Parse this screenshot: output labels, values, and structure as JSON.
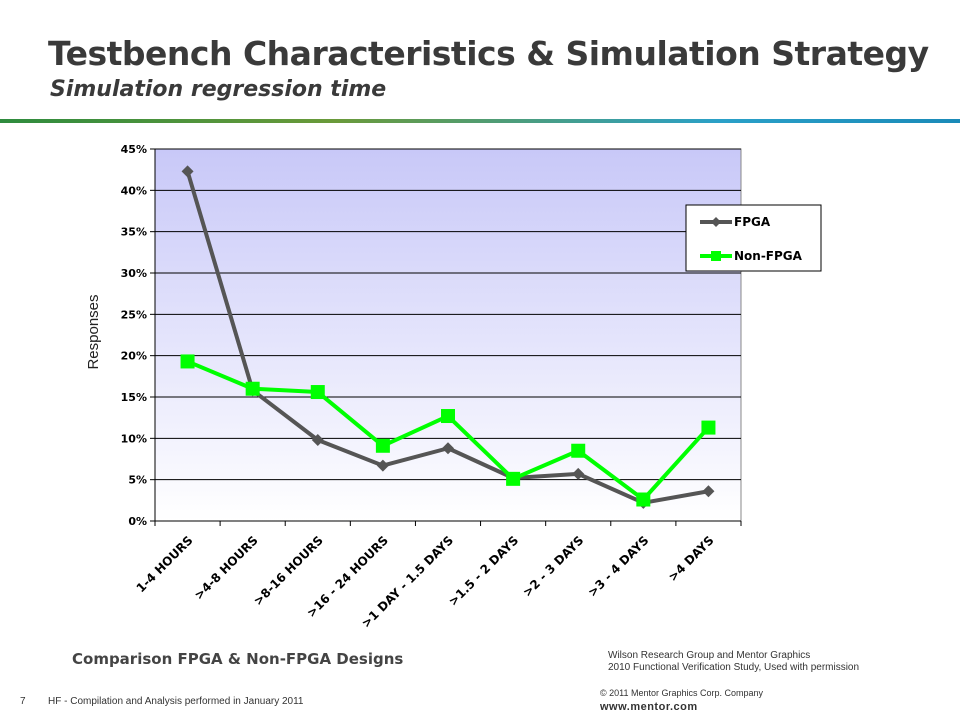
{
  "slide": {
    "title": "Testbench Characteristics & Simulation Strategy",
    "subtitle": "Simulation regression time",
    "caption": "Comparison FPGA & Non-FPGA Designs",
    "source_line1": "Wilson Research Group and Mentor Graphics",
    "source_line2": "2010 Functional Verification Study,  Used with permission",
    "slide_number": "7",
    "footnote": "HF - Compilation and Analysis performed in January 2011",
    "copyright": "© 2011 Mentor Graphics Corp. Company",
    "website": "www.mentor.com"
  },
  "colors": {
    "fpga": "#555555",
    "non_fpga": "#00ff00",
    "plot_top": "#c8c8f8",
    "plot_bottom": "#ffffff",
    "rule_start": "#2e8b3e",
    "rule_end": "#1a8ab8"
  },
  "chart_data": {
    "type": "line",
    "title": "",
    "xlabel": "",
    "ylabel": "Responses",
    "ylim": [
      0,
      45
    ],
    "yticks": [
      0,
      5,
      10,
      15,
      20,
      25,
      30,
      35,
      40,
      45
    ],
    "ytick_labels": [
      "0%",
      "5%",
      "10%",
      "15%",
      "20%",
      "25%",
      "30%",
      "35%",
      "40%",
      "45%"
    ],
    "categories": [
      "1-4 HOURS",
      ">4-8 HOURS",
      ">8-16 HOURS",
      ">16 - 24 HOURS",
      ">1 DAY - 1.5 DAYS",
      ">1.5 - 2 DAYS",
      ">2 - 3 DAYS",
      ">3 - 4 DAYS",
      ">4 DAYS"
    ],
    "series": [
      {
        "name": "FPGA",
        "marker": "diamond",
        "values": [
          42.3,
          15.8,
          9.8,
          6.7,
          8.8,
          5.2,
          5.7,
          2.2,
          3.6
        ]
      },
      {
        "name": "Non-FPGA",
        "marker": "square",
        "values": [
          19.3,
          16.0,
          15.6,
          9.1,
          12.7,
          5.1,
          8.5,
          2.6,
          11.3
        ]
      }
    ],
    "grid": true,
    "legend_position": "top-right"
  }
}
